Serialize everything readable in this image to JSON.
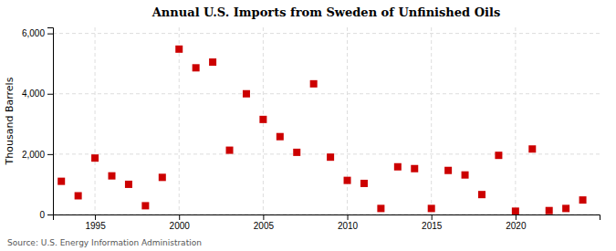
{
  "chart_data": {
    "type": "scatter",
    "title": "Annual U.S. Imports from Sweden of Unfinished Oils",
    "ylabel": "Thousand Barrels",
    "annotations": [
      "Source: U.S. Energy Information Administration"
    ],
    "x": [
      1993,
      1994,
      1995,
      1996,
      1997,
      1998,
      1999,
      2000,
      2001,
      2002,
      2003,
      2004,
      2005,
      2006,
      2007,
      2008,
      2009,
      2010,
      2011,
      2012,
      2013,
      2014,
      2015,
      2016,
      2017,
      2018,
      2019,
      2020,
      2021,
      2022,
      2023,
      2024
    ],
    "values": [
      1100,
      620,
      1870,
      1280,
      1000,
      290,
      1230,
      5480,
      4860,
      5050,
      2130,
      4000,
      3150,
      2580,
      2060,
      4330,
      1900,
      1130,
      1030,
      200,
      1580,
      1520,
      200,
      1460,
      1310,
      660,
      1960,
      110,
      2170,
      130,
      200,
      480
    ],
    "color": "#cc0000",
    "marker": "square",
    "xlim": [
      1992.5,
      2025
    ],
    "ylim": [
      0,
      6200
    ],
    "xticks": [
      1995,
      2000,
      2005,
      2010,
      2015,
      2020
    ],
    "yticks": [
      0,
      {
        "value": 2000,
        "label": "2,000"
      },
      {
        "value": 4000,
        "label": "4,000"
      },
      {
        "value": 6000,
        "label": "6,000"
      }
    ],
    "grid": true
  }
}
